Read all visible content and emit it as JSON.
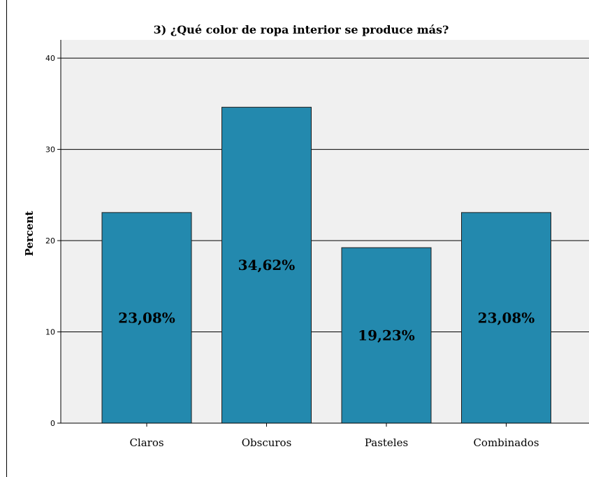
{
  "chart_data": {
    "type": "bar",
    "title": "3) ¿Qué color de ropa interior se produce más?",
    "xlabel": "",
    "ylabel": "Percent",
    "categories": [
      "Claros",
      "Obscuros",
      "Pasteles",
      "Combinados"
    ],
    "values": [
      23.08,
      34.62,
      19.23,
      23.08
    ],
    "data_labels": [
      "23,08%",
      "34,62%",
      "19,23%",
      "23,08%"
    ],
    "ylim": [
      0,
      40
    ],
    "yticks": [
      "0",
      "10",
      "20",
      "30",
      "40"
    ],
    "grid": true,
    "colors": {
      "bar": "#2389ae",
      "bar_edge": "#1e1e1e",
      "plot_background": "#f0f0f0",
      "gridline": "#000000"
    }
  }
}
